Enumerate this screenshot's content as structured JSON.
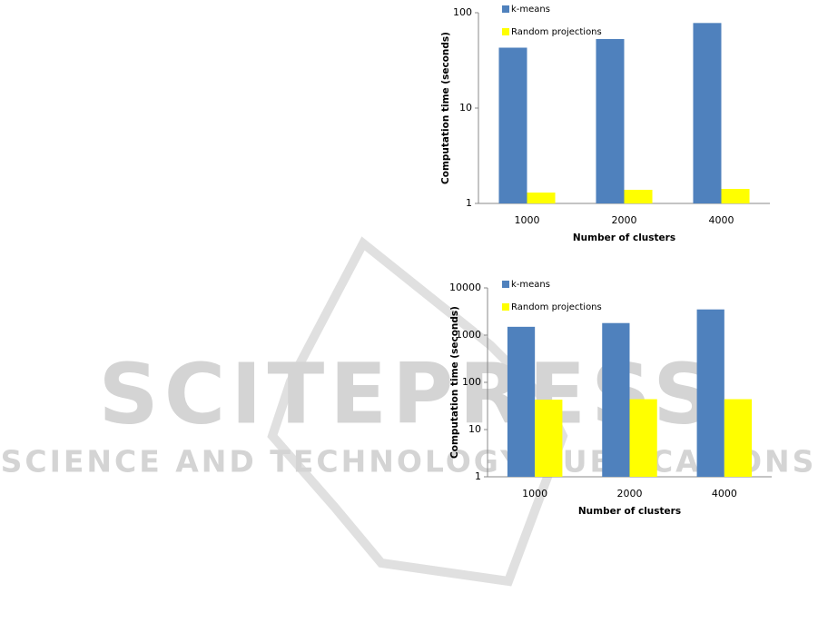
{
  "watermark": {
    "title": "SCITEPRESS",
    "subtitle": "SCIENCE AND TECHNOLOGY PUBLICATIONS"
  },
  "chart_data": [
    {
      "type": "bar",
      "x_label": "Number of clusters",
      "y_label": "Computation time (seconds)",
      "categories": [
        "1000",
        "2000",
        "4000"
      ],
      "series": [
        {
          "name": "k-means",
          "color": "#4f81bd",
          "values": [
            43,
            53,
            78
          ]
        },
        {
          "name": "Random projections",
          "color": "#ffff00",
          "values": [
            1.3,
            1.39,
            1.42
          ]
        }
      ],
      "log_scale": true,
      "ylim": [
        1,
        100
      ],
      "yticks": [
        1,
        10,
        100
      ],
      "grid": false,
      "legend": "top-left"
    },
    {
      "type": "bar",
      "x_label": "Number of clusters",
      "y_label": "Computation time (seconds)",
      "categories": [
        "1000",
        "2000",
        "4000"
      ],
      "series": [
        {
          "name": "k-means",
          "color": "#4f81bd",
          "values": [
            1500,
            1800,
            3500
          ]
        },
        {
          "name": "Random projections",
          "color": "#ffff00",
          "values": [
            43,
            44,
            44
          ]
        }
      ],
      "log_scale": true,
      "ylim": [
        1,
        10000
      ],
      "yticks": [
        1,
        10,
        100,
        1000,
        10000
      ],
      "grid": false,
      "legend": "top-left"
    }
  ]
}
